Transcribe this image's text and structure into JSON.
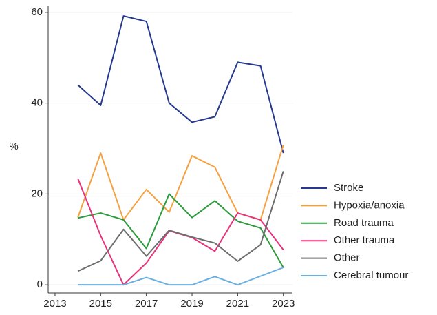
{
  "chart_data": {
    "type": "line",
    "y_label": "%",
    "x": [
      2014,
      2015,
      2016,
      2017,
      2018,
      2019,
      2020,
      2021,
      2022,
      2023
    ],
    "series": [
      {
        "name": "Stroke",
        "color": "#25398f",
        "values": [
          44,
          39.5,
          59.2,
          58,
          40,
          35.8,
          37,
          49,
          48.2,
          29
        ]
      },
      {
        "name": "Hypoxia/anoxia",
        "color": "#f5a040",
        "values": [
          14.8,
          29,
          14.3,
          21,
          16,
          28.4,
          25.9,
          15.8,
          14.3,
          30.8
        ]
      },
      {
        "name": "Road trauma",
        "color": "#2b9b3b",
        "values": [
          14.7,
          15.8,
          14.3,
          8,
          20,
          14.8,
          18.5,
          14,
          12.5,
          3.8
        ]
      },
      {
        "name": "Other trauma",
        "color": "#e8317a",
        "values": [
          23.4,
          10.8,
          0,
          4.8,
          11.9,
          10.4,
          7.4,
          15.8,
          14.3,
          7.7
        ]
      },
      {
        "name": "Other",
        "color": "#6d6d6d",
        "values": [
          3,
          5.3,
          12.2,
          6.3,
          12,
          10.5,
          9.2,
          5.2,
          8.8,
          25
        ]
      },
      {
        "name": "Cerebral tumour",
        "color": "#6aafdf",
        "values": [
          0,
          0,
          0,
          1.6,
          0,
          0,
          1.8,
          0,
          1.9,
          3.8
        ]
      }
    ],
    "xlim": [
      2012.7,
      2023.4
    ],
    "xticks": [
      2013,
      2015,
      2017,
      2019,
      2021,
      2023
    ],
    "ylim": [
      -1.8,
      61.5
    ],
    "yticks": [
      0,
      20,
      40,
      60
    ],
    "grid": true,
    "legend": "right"
  }
}
